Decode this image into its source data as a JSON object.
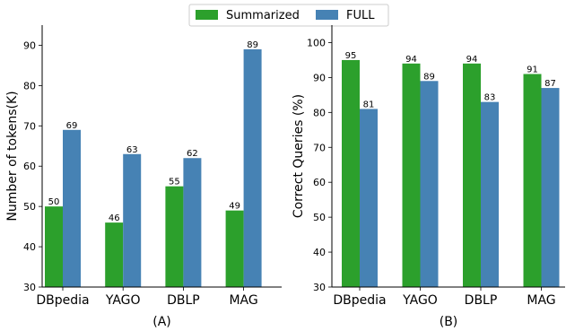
{
  "legend": {
    "entries": [
      {
        "label": "Summarized",
        "color": "#2ca02c"
      },
      {
        "label": "FULL",
        "color": "#4682b4"
      }
    ]
  },
  "chart_data": [
    {
      "type": "bar",
      "title": "",
      "xlabel": "(A)",
      "ylabel": "Number of tokens(K)",
      "categories": [
        "DBpedia",
        "YAGO",
        "DBLP",
        "MAG"
      ],
      "ylim": [
        30,
        95
      ],
      "yticks": [
        30,
        40,
        50,
        60,
        70,
        80,
        90
      ],
      "series": [
        {
          "name": "Summarized",
          "color": "#2ca02c",
          "values": [
            50,
            46,
            55,
            49
          ]
        },
        {
          "name": "FULL",
          "color": "#4682b4",
          "values": [
            69,
            63,
            62,
            89
          ]
        }
      ]
    },
    {
      "type": "bar",
      "title": "",
      "xlabel": "(B)",
      "ylabel": "Correct Queries (%)",
      "categories": [
        "DBpedia",
        "YAGO",
        "DBLP",
        "MAG"
      ],
      "ylim": [
        30,
        105
      ],
      "yticks": [
        30,
        40,
        50,
        60,
        70,
        80,
        90,
        100
      ],
      "series": [
        {
          "name": "Summarized",
          "color": "#2ca02c",
          "values": [
            95,
            94,
            94,
            91
          ]
        },
        {
          "name": "FULL",
          "color": "#4682b4",
          "values": [
            81,
            89,
            83,
            87
          ]
        }
      ]
    }
  ]
}
